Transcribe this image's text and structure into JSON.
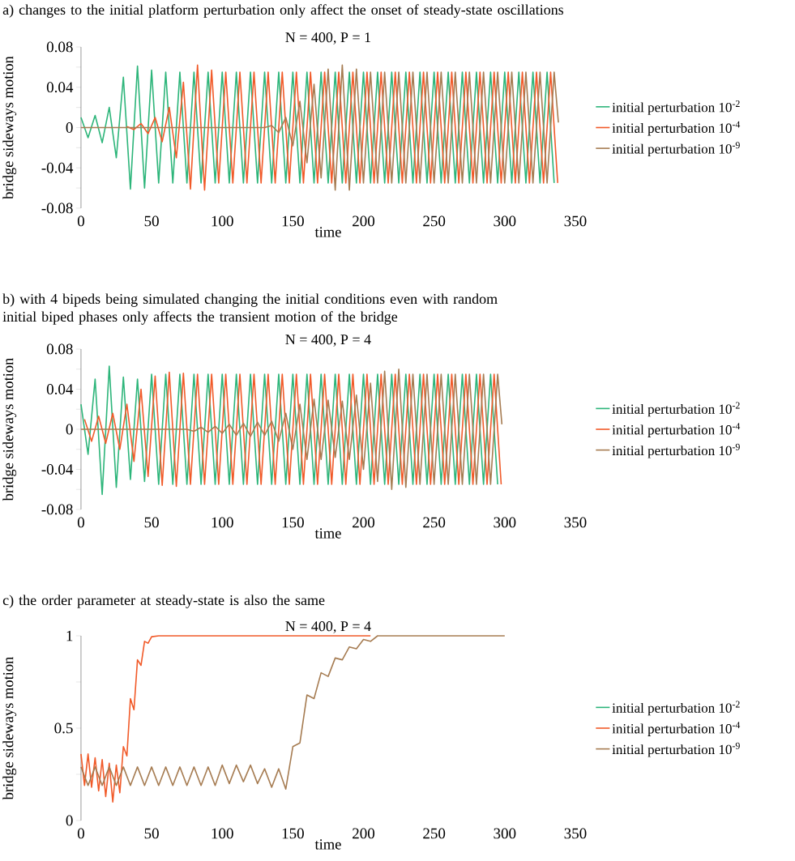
{
  "chart_data": [
    {
      "type": "line",
      "title": "a) changes to the initial platform perturbation only affect the onset of steady-state oscillations",
      "subtitle": "N = 400, P = 1",
      "xlabel": "time",
      "ylabel": "bridge sideways motion",
      "xlim": [
        0,
        350
      ],
      "xticks": [
        0,
        50,
        100,
        150,
        200,
        250,
        300,
        350
      ],
      "ylim": [
        -0.08,
        0.08
      ],
      "yticks": [
        -0.08,
        {
          "value": -0.06,
          "label": null
        },
        -0.04,
        {
          "value": -0.02,
          "label": null
        },
        0,
        {
          "value": 0.02,
          "label": null
        },
        0.04,
        {
          "value": 0.06,
          "label": null
        },
        0.08
      ],
      "legend": "right",
      "series": [
        {
          "name": "initial perturbation 10$^{-2}$",
          "color": "#2db57a",
          "x": [
            0,
            5,
            10,
            15,
            20,
            25,
            30,
            35,
            40,
            45,
            50,
            55,
            60,
            65,
            70,
            75,
            80,
            85,
            90,
            95,
            100,
            105,
            110,
            115,
            120,
            125,
            130,
            135,
            140,
            145,
            150,
            155,
            160,
            165,
            170,
            175,
            180,
            185,
            190,
            195,
            200,
            205,
            210,
            215,
            220,
            225,
            230,
            235,
            240,
            245,
            250,
            255,
            260,
            265,
            270,
            275,
            280,
            285,
            290,
            295,
            300,
            305,
            310,
            315,
            320,
            325,
            330,
            335
          ],
          "values": [
            0.01,
            -0.01,
            0.012,
            -0.015,
            0.02,
            -0.03,
            0.05,
            -0.061,
            0.061,
            -0.06,
            0.057,
            -0.055,
            0.055,
            -0.055,
            0.055,
            -0.055,
            0.055,
            -0.055,
            0.055,
            -0.055,
            0.055,
            -0.055,
            0.055,
            -0.055,
            0.055,
            -0.055,
            0.055,
            -0.055,
            0.055,
            -0.055,
            0.055,
            -0.055,
            0.055,
            -0.055,
            0.055,
            -0.055,
            0.055,
            -0.055,
            0.055,
            -0.055,
            0.055,
            -0.055,
            0.055,
            -0.055,
            0.055,
            -0.055,
            0.055,
            -0.055,
            0.055,
            -0.055,
            0.055,
            -0.055,
            0.055,
            -0.055,
            0.055,
            -0.055,
            0.055,
            -0.055,
            0.055,
            -0.055,
            0.055,
            -0.055,
            0.055,
            -0.055,
            0.055,
            -0.055,
            0.055,
            -0.055
          ]
        },
        {
          "name": "initial perturbation 10$^{-4}$",
          "color": "#f15a29",
          "x": [
            32.5,
            37.5,
            42.5,
            47.5,
            52.5,
            57.5,
            62.5,
            67.5,
            72.5,
            77.5,
            82.5,
            87.5,
            92.5,
            97.5,
            102.5,
            107.5,
            112.5,
            117.5,
            122.5,
            127.5,
            132.5,
            137.5,
            142.5,
            147.5,
            152.5,
            157.5,
            162.5,
            167.5,
            172.5,
            177.5,
            182.5,
            187.5,
            192.5,
            197.5,
            202.5,
            207.5,
            212.5,
            217.5,
            222.5,
            227.5,
            232.5,
            237.5,
            242.5,
            247.5,
            252.5,
            257.5,
            262.5,
            267.5,
            272.5,
            277.5,
            282.5,
            287.5,
            292.5,
            297.5,
            302.5,
            307.5,
            312.5,
            317.5,
            322.5,
            327.5,
            332.5,
            337.5
          ],
          "values": [
            0.001,
            -0.002,
            0.004,
            -0.006,
            0.01,
            -0.014,
            0.02,
            -0.03,
            0.045,
            -0.061,
            0.062,
            -0.062,
            0.057,
            -0.055,
            0.055,
            -0.055,
            0.055,
            -0.055,
            0.055,
            -0.055,
            0.055,
            -0.055,
            0.055,
            -0.055,
            0.055,
            -0.055,
            0.055,
            -0.055,
            0.055,
            -0.055,
            0.055,
            -0.055,
            0.055,
            -0.055,
            0.055,
            -0.055,
            0.055,
            -0.055,
            0.055,
            -0.055,
            0.055,
            -0.055,
            0.055,
            -0.055,
            0.055,
            -0.055,
            0.055,
            -0.055,
            0.055,
            -0.055,
            0.055,
            -0.055,
            0.055,
            -0.055,
            0.055,
            -0.055,
            0.055,
            -0.055,
            0.055,
            -0.055,
            0.055,
            -0.055
          ]
        },
        {
          "name": "initial perturbation 10$^{-9}$",
          "color": "#a67c52",
          "x": [
            0,
            5,
            10,
            15,
            20,
            25,
            30,
            35,
            40,
            45,
            50,
            55,
            60,
            65,
            70,
            75,
            80,
            85,
            90,
            95,
            100,
            105,
            110,
            115,
            120,
            125,
            130,
            135,
            140,
            145,
            150,
            155,
            160,
            165,
            170,
            175,
            180,
            185,
            190,
            195,
            200,
            205,
            210,
            215,
            220,
            225,
            230,
            235,
            240,
            245,
            250,
            255,
            260,
            265,
            270,
            275,
            280,
            285,
            290,
            295,
            300,
            305,
            310,
            315,
            320,
            325,
            330,
            335,
            338
          ],
          "values": [
            0,
            0,
            0,
            0,
            0,
            0,
            0,
            0,
            0,
            0,
            0,
            0,
            0,
            0,
            0,
            0,
            0,
            0,
            0,
            0,
            0,
            0,
            0,
            0,
            0,
            0,
            0,
            0.002,
            -0.005,
            0.01,
            -0.018,
            0.026,
            -0.035,
            0.043,
            -0.05,
            0.058,
            -0.062,
            0.062,
            -0.062,
            0.058,
            -0.055,
            0.055,
            -0.055,
            0.055,
            -0.055,
            0.055,
            -0.055,
            0.055,
            -0.055,
            0.055,
            -0.055,
            0.055,
            -0.055,
            0.055,
            -0.055,
            0.055,
            -0.055,
            0.055,
            -0.055,
            0.055,
            -0.055,
            0.055,
            -0.055,
            0.055,
            -0.055,
            0.055,
            -0.055,
            0.055,
            0.005
          ]
        }
      ]
    },
    {
      "type": "line",
      "title": "b) with 4 bipeds being simulated changing the initial conditions even with random initial biped phases only affects the transient motion of the bridge",
      "subtitle": "N = 400, P = 4",
      "xlabel": "time",
      "ylabel": "bridge sideways motion",
      "xlim": [
        0,
        350
      ],
      "xticks": [
        0,
        50,
        100,
        150,
        200,
        250,
        300,
        350
      ],
      "ylim": [
        -0.08,
        0.08
      ],
      "yticks": [
        -0.08,
        {
          "value": -0.06,
          "label": null
        },
        -0.04,
        {
          "value": -0.02,
          "label": null
        },
        0,
        {
          "value": 0.02,
          "label": null
        },
        0.04,
        {
          "value": 0.06,
          "label": null
        },
        0.08
      ],
      "legend": "right",
      "series": [
        {
          "name": "initial perturbation 10$^{-2}$",
          "color": "#2db57a",
          "x": [
            0,
            5,
            10,
            15,
            20,
            25,
            30,
            35,
            40,
            45,
            50,
            55,
            60,
            65,
            70,
            75,
            80,
            85,
            90,
            95,
            100,
            105,
            110,
            115,
            120,
            125,
            130,
            135,
            140,
            145,
            150,
            155,
            160,
            165,
            170,
            175,
            180,
            185,
            190,
            195,
            200,
            205,
            210,
            215,
            220,
            225,
            230,
            235,
            240,
            245,
            250,
            255,
            260,
            265,
            270,
            275,
            280,
            285,
            290,
            295
          ],
          "values": [
            0.025,
            -0.025,
            0.05,
            -0.065,
            0.063,
            -0.058,
            0.052,
            -0.05,
            0.05,
            -0.052,
            0.055,
            -0.055,
            0.055,
            -0.055,
            0.055,
            -0.055,
            0.055,
            -0.055,
            0.055,
            -0.055,
            0.055,
            -0.055,
            0.055,
            -0.055,
            0.055,
            -0.055,
            0.055,
            -0.055,
            0.055,
            -0.055,
            0.055,
            -0.055,
            0.055,
            -0.055,
            0.055,
            -0.055,
            0.055,
            -0.055,
            0.055,
            -0.055,
            0.055,
            -0.055,
            0.055,
            -0.055,
            0.055,
            -0.055,
            0.055,
            -0.055,
            0.055,
            -0.055,
            0.055,
            -0.055,
            0.055,
            -0.055,
            0.055,
            -0.055,
            0.055,
            -0.055,
            0.055,
            -0.055
          ]
        },
        {
          "name": "initial perturbation 10$^{-4}$",
          "color": "#f15a29",
          "x": [
            2.5,
            7.5,
            12.5,
            17.5,
            22.5,
            27.5,
            32.5,
            37.5,
            42.5,
            47.5,
            52.5,
            57.5,
            62.5,
            67.5,
            72.5,
            77.5,
            82.5,
            87.5,
            92.5,
            97.5,
            102.5,
            107.5,
            112.5,
            117.5,
            122.5,
            127.5,
            132.5,
            137.5,
            142.5,
            147.5,
            152.5,
            157.5,
            162.5,
            167.5,
            172.5,
            177.5,
            182.5,
            187.5,
            192.5,
            197.5,
            202.5,
            207.5,
            212.5,
            217.5,
            222.5,
            227.5,
            232.5,
            237.5,
            242.5,
            247.5,
            252.5,
            257.5,
            262.5,
            267.5,
            272.5,
            277.5,
            282.5,
            287.5,
            292.5,
            297.5
          ],
          "values": [
            0.01,
            -0.012,
            0.013,
            -0.014,
            0.016,
            -0.02,
            0.025,
            -0.032,
            0.04,
            -0.047,
            0.053,
            -0.056,
            0.057,
            -0.057,
            0.056,
            -0.055,
            0.055,
            -0.055,
            0.055,
            -0.055,
            0.055,
            -0.055,
            0.055,
            -0.055,
            0.055,
            -0.055,
            0.055,
            -0.055,
            0.055,
            -0.055,
            0.055,
            -0.055,
            0.055,
            -0.055,
            0.055,
            -0.055,
            0.055,
            -0.055,
            0.055,
            -0.055,
            0.055,
            -0.055,
            0.055,
            -0.055,
            0.055,
            -0.055,
            0.055,
            -0.055,
            0.055,
            -0.055,
            0.055,
            -0.055,
            0.055,
            -0.055,
            0.055,
            -0.055,
            0.055,
            -0.055,
            0.055,
            -0.055
          ]
        },
        {
          "name": "initial perturbation 10$^{-9}$",
          "color": "#a67c52",
          "x": [
            0,
            5,
            10,
            15,
            20,
            25,
            30,
            35,
            40,
            45,
            50,
            55,
            60,
            65,
            70,
            75,
            80,
            85,
            90,
            95,
            100,
            105,
            110,
            115,
            120,
            125,
            130,
            135,
            140,
            145,
            150,
            155,
            160,
            165,
            170,
            175,
            180,
            185,
            190,
            195,
            200,
            205,
            210,
            215,
            220,
            225,
            230,
            235,
            240,
            245,
            250,
            255,
            260,
            265,
            270,
            275,
            280,
            285,
            290,
            295,
            298
          ],
          "values": [
            0,
            0,
            0,
            0,
            0,
            0,
            0,
            0,
            0,
            0,
            0,
            0,
            0,
            0,
            0,
            0,
            -0.002,
            0.002,
            -0.003,
            0.003,
            -0.004,
            0.005,
            -0.006,
            0.006,
            -0.007,
            0.007,
            -0.006,
            0.008,
            -0.012,
            0.016,
            -0.02,
            0.025,
            -0.03,
            0.03,
            -0.03,
            0.029,
            -0.028,
            0.028,
            -0.03,
            0.034,
            -0.04,
            0.046,
            -0.052,
            0.058,
            -0.06,
            0.06,
            -0.058,
            0.055,
            -0.055,
            0.055,
            -0.055,
            0.055,
            -0.055,
            0.055,
            -0.055,
            0.055,
            -0.055,
            0.055,
            -0.055,
            0.055,
            0.005
          ]
        }
      ]
    },
    {
      "type": "line",
      "title": "c) the order parameter at steady-state is also the same",
      "subtitle": "N = 400, P = 4",
      "xlabel": "time",
      "ylabel": "bridge sideways motion",
      "xlim": [
        0,
        350
      ],
      "xticks": [
        0,
        50,
        100,
        150,
        200,
        250,
        300,
        350
      ],
      "ylim": [
        0,
        1
      ],
      "yticks": [
        0,
        {
          "value": 0.25,
          "label": null
        },
        0.5,
        {
          "value": 0.75,
          "label": null
        },
        1
      ],
      "legend": "right",
      "series": [
        {
          "name": "initial perturbation 10$^{-2}$",
          "color": "#2db57a",
          "values": [
            null
          ]
        },
        {
          "name": "initial perturbation 10$^{-4}$",
          "color": "#f15a29",
          "x": [
            0,
            2.5,
            5,
            7.5,
            10,
            12.5,
            15,
            17.5,
            20,
            22.5,
            25,
            27.5,
            30,
            32.5,
            35,
            37.5,
            40,
            42.5,
            45,
            47.5,
            50,
            55,
            205
          ],
          "values": [
            0.36,
            0.19,
            0.36,
            0.18,
            0.34,
            0.16,
            0.33,
            0.13,
            0.31,
            0.1,
            0.3,
            0.15,
            0.4,
            0.35,
            0.66,
            0.6,
            0.87,
            0.84,
            0.97,
            0.96,
            0.995,
            1,
            1
          ]
        },
        {
          "name": "initial perturbation 10$^{-9}$",
          "color": "#a67c52",
          "x": [
            0,
            5,
            10,
            15,
            20,
            25,
            30,
            35,
            40,
            45,
            50,
            55,
            60,
            65,
            70,
            75,
            80,
            85,
            90,
            95,
            100,
            105,
            110,
            115,
            120,
            125,
            130,
            135,
            140,
            145,
            150,
            155,
            160,
            165,
            170,
            175,
            180,
            185,
            190,
            195,
            200,
            205,
            210,
            215,
            300
          ],
          "values": [
            0.29,
            0.19,
            0.29,
            0.19,
            0.29,
            0.19,
            0.29,
            0.19,
            0.29,
            0.19,
            0.29,
            0.19,
            0.29,
            0.19,
            0.29,
            0.19,
            0.29,
            0.19,
            0.29,
            0.19,
            0.3,
            0.2,
            0.3,
            0.21,
            0.3,
            0.2,
            0.28,
            0.18,
            0.28,
            0.17,
            0.4,
            0.42,
            0.68,
            0.66,
            0.8,
            0.78,
            0.88,
            0.87,
            0.94,
            0.93,
            0.98,
            0.97,
            1,
            1,
            1
          ]
        }
      ]
    }
  ]
}
